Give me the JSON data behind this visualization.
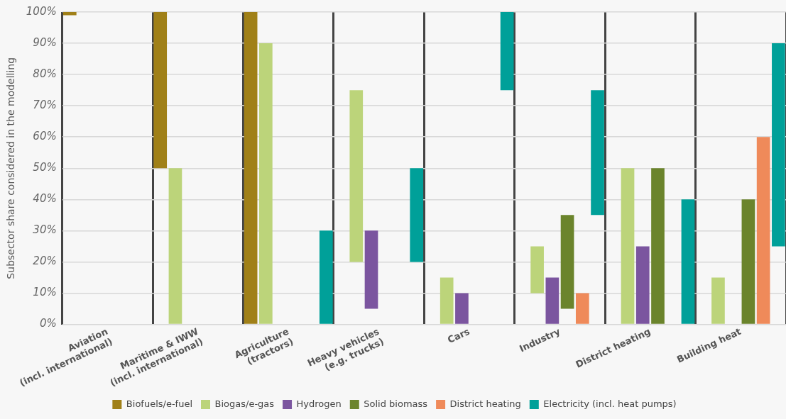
{
  "chart_data": {
    "type": "bar",
    "ylabel": "Subsector share considered in the modelling",
    "categories": [
      "Aviation\n(incl. international)",
      "Maritime & IWW\n(incl. international)",
      "Agriculture\n(tractors)",
      "Heavy vehicles\n(e.g. trucks)",
      "Cars",
      "Industry",
      "District heating",
      "Building heat"
    ],
    "series": [
      {
        "name": "Biofuels/e-fuel",
        "color": "#a08018",
        "base": [
          99,
          50,
          0,
          null,
          null,
          null,
          null,
          null
        ],
        "values": [
          1,
          50,
          100,
          null,
          null,
          null,
          null,
          null
        ]
      },
      {
        "name": "Biogas/e-gas",
        "color": "#bcd47a",
        "base": [
          null,
          0,
          0,
          20,
          0,
          10,
          0,
          0
        ],
        "values": [
          null,
          50,
          90,
          55,
          15,
          15,
          50,
          15
        ]
      },
      {
        "name": "Hydrogen",
        "color": "#7b559f",
        "base": [
          null,
          null,
          null,
          5,
          0,
          0,
          0,
          null
        ],
        "values": [
          null,
          null,
          null,
          25,
          10,
          15,
          25,
          null
        ]
      },
      {
        "name": "Solid biomass",
        "color": "#6b842c",
        "base": [
          null,
          null,
          null,
          null,
          null,
          5,
          0,
          0
        ],
        "values": [
          null,
          null,
          null,
          null,
          null,
          30,
          50,
          40
        ]
      },
      {
        "name": "District heating",
        "color": "#ef8a5a",
        "base": [
          null,
          null,
          null,
          null,
          null,
          0,
          null,
          0
        ],
        "values": [
          null,
          null,
          null,
          null,
          null,
          10,
          null,
          60
        ]
      },
      {
        "name": "Electricity (incl. heat pumps)",
        "color": "#00a099",
        "base": [
          null,
          null,
          0,
          20,
          75,
          35,
          0,
          25
        ],
        "values": [
          null,
          null,
          30,
          30,
          25,
          40,
          40,
          65
        ]
      }
    ],
    "ylim": [
      0,
      100
    ],
    "yticks": [
      {
        "value": 0,
        "label": "0%"
      },
      {
        "value": 10,
        "label": "10%"
      },
      {
        "value": 20,
        "label": "20%"
      },
      {
        "value": 30,
        "label": "30%"
      },
      {
        "value": 40,
        "label": "40%"
      },
      {
        "value": 50,
        "label": "50%"
      },
      {
        "value": 60,
        "label": "60%"
      },
      {
        "value": 70,
        "label": "70%"
      },
      {
        "value": 80,
        "label": "80%"
      },
      {
        "value": 90,
        "label": "90%"
      },
      {
        "value": 100,
        "label": "100%"
      }
    ],
    "grid": true,
    "legend": "bottom"
  }
}
